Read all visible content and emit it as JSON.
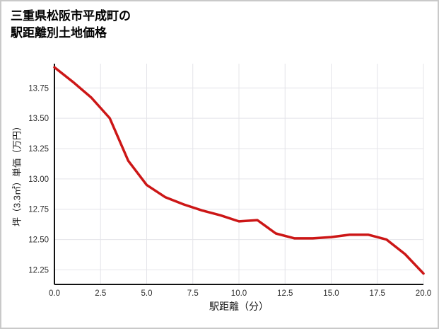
{
  "page": {
    "title_line1": "三重県松阪市平成町の",
    "title_line2": "駅距離別土地価格"
  },
  "chart_data": {
    "type": "line",
    "title": "三重県松阪市平成町の駅距離別土地価格",
    "xlabel": "駅距離（分）",
    "ylabel": "坪（3.3㎡）単価（万円）",
    "x": [
      0,
      1,
      2,
      3,
      4,
      5,
      6,
      7,
      8,
      9,
      10,
      11,
      12,
      13,
      14,
      15,
      16,
      17,
      18,
      19,
      20
    ],
    "y": [
      13.92,
      13.8,
      13.67,
      13.5,
      13.15,
      12.95,
      12.85,
      12.79,
      12.74,
      12.7,
      12.65,
      12.66,
      12.55,
      12.51,
      12.51,
      12.52,
      12.54,
      12.54,
      12.5,
      12.38,
      12.22
    ],
    "xlim": [
      0,
      20
    ],
    "ylim": [
      12.13,
      13.95
    ],
    "xticks": [
      0,
      2.5,
      5,
      7.5,
      10,
      12.5,
      15,
      17.5,
      20
    ],
    "xtick_labels": [
      "0.0",
      "2.5",
      "5.0",
      "7.5",
      "10.0",
      "12.5",
      "15.0",
      "17.5",
      "20.0"
    ],
    "yticks": [
      12.25,
      12.5,
      12.75,
      13,
      13.25,
      13.5,
      13.75
    ],
    "ytick_labels": [
      "12.25",
      "12.50",
      "12.75",
      "13.00",
      "13.25",
      "13.50",
      "13.75"
    ],
    "grid": true,
    "legend": false,
    "line_color": "#cc1616",
    "grid_color": "#e4e4e9",
    "axis_color": "#111111"
  }
}
